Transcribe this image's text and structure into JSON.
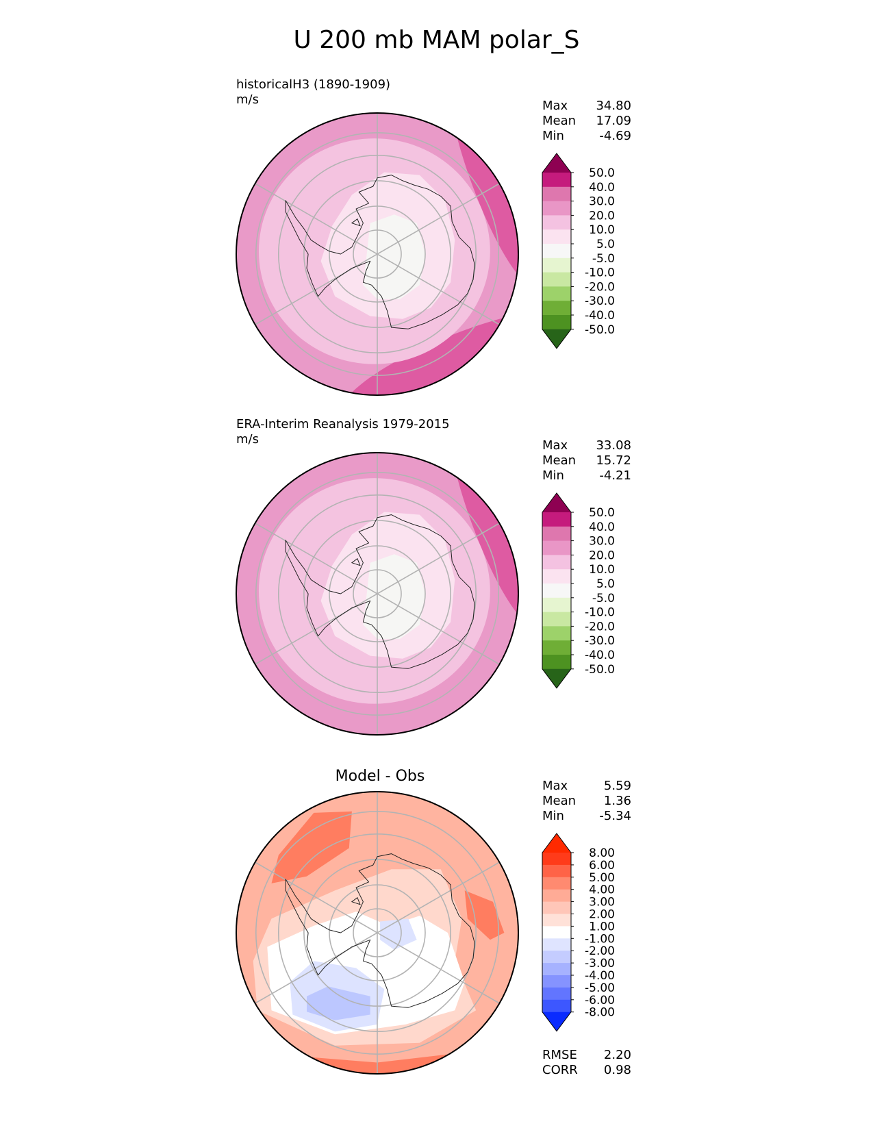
{
  "figure": {
    "title": "U 200 mb MAM polar_S"
  },
  "panels": [
    {
      "id": "test",
      "title": "historicalH3 (1890-1909)",
      "units": "m/s",
      "stats": {
        "max_label": "Max",
        "max": "34.80",
        "mean_label": "Mean",
        "mean": "17.09",
        "min_label": "Min",
        "min": "-4.69"
      },
      "colorbar_labels": [
        "50.0",
        "40.0",
        "30.0",
        "20.0",
        "10.0",
        "5.0",
        "-5.0",
        "-10.0",
        "-20.0",
        "-30.0",
        "-40.0",
        "-50.0"
      ],
      "colorbar_colors": [
        "#8e0152",
        "#c51b7d",
        "#de77ae",
        "#e996c6",
        "#f4c2e1",
        "#fbe3f0",
        "#f7f7f7",
        "#e6f5d0",
        "#c9e8a2",
        "#9dd26a",
        "#6fae36",
        "#4d9221",
        "#276419"
      ],
      "field_levels": [
        "#de5ba2",
        "#e99ac8",
        "#f4c3e0",
        "#fbe3f0",
        "#f6f6f4"
      ]
    },
    {
      "id": "reference",
      "title": "ERA-Interim Reanalysis 1979-2015",
      "units": "m/s",
      "stats": {
        "max_label": "Max",
        "max": "33.08",
        "mean_label": "Mean",
        "mean": "15.72",
        "min_label": "Min",
        "min": "-4.21"
      },
      "colorbar_labels": [
        "50.0",
        "40.0",
        "30.0",
        "20.0",
        "10.0",
        "5.0",
        "-5.0",
        "-10.0",
        "-20.0",
        "-30.0",
        "-40.0",
        "-50.0"
      ],
      "colorbar_colors": [
        "#8e0152",
        "#c51b7d",
        "#de77ae",
        "#e996c6",
        "#f4c2e1",
        "#fbe3f0",
        "#f7f7f7",
        "#e6f5d0",
        "#c9e8a2",
        "#9dd26a",
        "#6fae36",
        "#4d9221",
        "#276419"
      ],
      "field_levels": [
        "#de5ba2",
        "#e99ac8",
        "#f4c3e0",
        "#fbe3f0",
        "#f6f6f4"
      ]
    },
    {
      "id": "diff",
      "title": "Model - Obs",
      "stats": {
        "max_label": "Max",
        "max": "5.59",
        "mean_label": "Mean",
        "mean": "1.36",
        "min_label": "Min",
        "min": "-5.34"
      },
      "colorbar_labels": [
        "8.00",
        "6.00",
        "5.00",
        "4.00",
        "3.00",
        "2.00",
        "1.00",
        "-1.00",
        "-2.00",
        "-3.00",
        "-4.00",
        "-5.00",
        "-6.00",
        "-8.00"
      ],
      "colorbar_colors": [
        "#ff2a00",
        "#ff3b1a",
        "#ff6347",
        "#ff8a70",
        "#ffab96",
        "#ffc6b8",
        "#ffe1d8",
        "#ffffff",
        "#dfe4ff",
        "#c4ccff",
        "#a6b2ff",
        "#8593ff",
        "#6275ff",
        "#3d57ff",
        "#0a2bff"
      ],
      "field_levels": [
        "#ff7d60",
        "#ffb4a0",
        "#ffd8cc",
        "#ffffff",
        "#dde3ff",
        "#bcc7ff"
      ],
      "metrics": {
        "rmse_label": "RMSE",
        "rmse": "2.20",
        "corr_label": "CORR",
        "corr": "0.98"
      }
    }
  ]
}
